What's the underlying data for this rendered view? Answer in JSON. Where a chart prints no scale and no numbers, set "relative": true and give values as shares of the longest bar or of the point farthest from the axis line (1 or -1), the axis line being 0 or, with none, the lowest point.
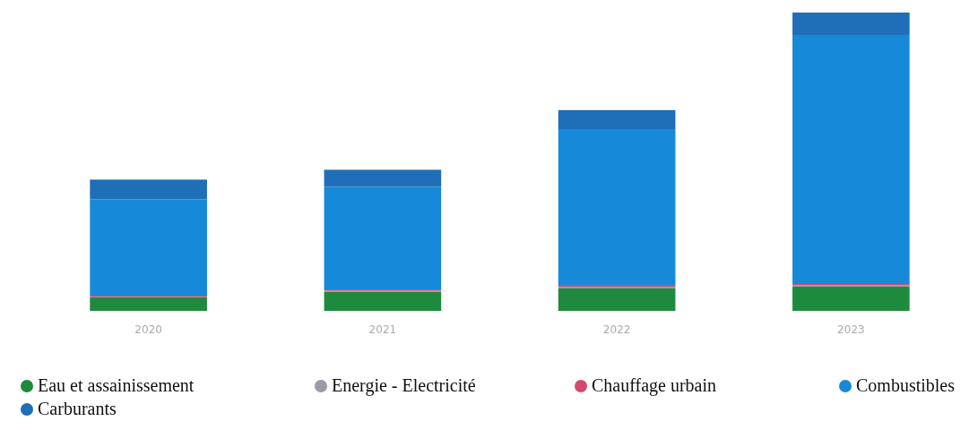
{
  "chart_data": {
    "type": "bar",
    "stacked": true,
    "relative": true,
    "categories": [
      "2020",
      "2021",
      "2022",
      "2023"
    ],
    "series": [
      {
        "name": "Eau et assainissement",
        "color": "#1e8a3e",
        "values": [
          0.045,
          0.063,
          0.075,
          0.081
        ]
      },
      {
        "name": "Energie - Electricité",
        "color": "#9a9aa8",
        "values": [
          0.003,
          0.0045,
          0.006,
          0.0045
        ]
      },
      {
        "name": "Chauffage urbain",
        "color": "#d44a6e",
        "values": [
          0.003,
          0.0045,
          0.006,
          0.0045
        ]
      },
      {
        "name": "Combustibles",
        "color": "#1689d8",
        "values": [
          0.323,
          0.344,
          0.52,
          0.835
        ]
      },
      {
        "name": "Carburants",
        "color": "#1f6fb8",
        "values": [
          0.066,
          0.057,
          0.066,
          0.075
        ]
      }
    ],
    "legend": "bottom"
  }
}
